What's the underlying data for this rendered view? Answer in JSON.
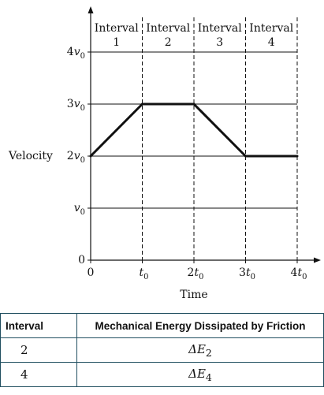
{
  "chart_data": {
    "type": "line",
    "xlabel": "Time",
    "ylabel": "Velocity",
    "x_ticks": [
      "0",
      "t0",
      "2t0",
      "3t0",
      "4t0"
    ],
    "y_ticks": [
      "0",
      "v0",
      "2v0",
      "3v0",
      "4v0"
    ],
    "xlim": [
      0,
      4
    ],
    "ylim": [
      0,
      4
    ],
    "grid": "horizontal gridlines at each v0; dashed vertical lines at each t0",
    "intervals": [
      {
        "label": "Interval",
        "number": "1"
      },
      {
        "label": "Interval",
        "number": "2"
      },
      {
        "label": "Interval",
        "number": "3"
      },
      {
        "label": "Interval",
        "number": "4"
      }
    ],
    "series": [
      {
        "x": [
          0,
          1,
          2,
          3,
          4
        ],
        "y": [
          2,
          3,
          3,
          2,
          2
        ]
      }
    ]
  },
  "table": {
    "headers": [
      "Interval",
      "Mechanical Energy Dissipated by Friction"
    ],
    "rows": [
      {
        "interval": "2",
        "energy_symbol": "ΔE",
        "energy_subscript": "2"
      },
      {
        "interval": "4",
        "energy_symbol": "ΔE",
        "energy_subscript": "4"
      }
    ]
  }
}
